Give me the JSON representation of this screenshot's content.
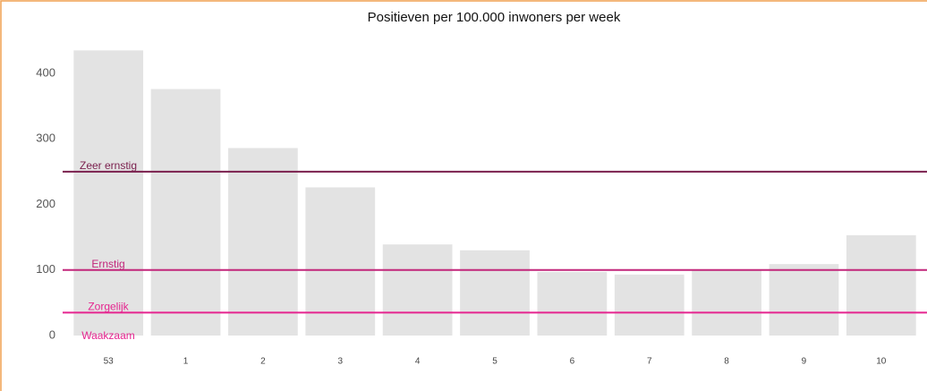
{
  "chart_data": {
    "type": "bar",
    "title": "Positieven per 100.000 inwoners per week",
    "categories": [
      "53",
      "1",
      "2",
      "3",
      "4",
      "5",
      "6",
      "7",
      "8",
      "9",
      "10"
    ],
    "values": [
      435,
      376,
      286,
      226,
      139,
      130,
      97,
      93,
      101,
      109,
      153
    ],
    "color": "#e3e3e3",
    "ylim": [
      0,
      475
    ],
    "yticks": [
      0,
      100,
      200,
      300,
      400
    ],
    "grid": false,
    "thresholds": [
      {
        "name": "Zeer ernstig",
        "value": 250,
        "color": "#7a1f4d",
        "line": true
      },
      {
        "name": "Ernstig",
        "value": 100,
        "color": "#c2267a",
        "line": true
      },
      {
        "name": "Zorgelijk",
        "value": 35,
        "color": "#e5258f",
        "line": true
      },
      {
        "name": "Waakzaam",
        "value": 0,
        "color": "#e5258f",
        "line": false
      }
    ]
  }
}
